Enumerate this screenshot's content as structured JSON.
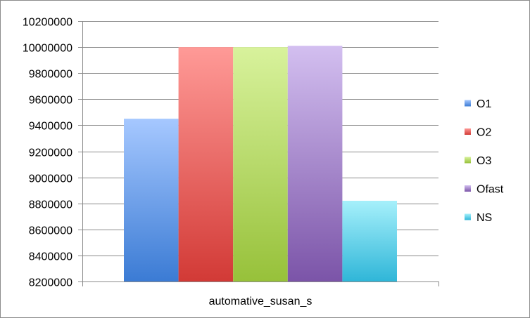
{
  "chart_data": {
    "type": "bar",
    "categories": [
      "automative_susan_s"
    ],
    "series": [
      {
        "name": "O1",
        "values": [
          9450000
        ],
        "color_top": "#a6c8ff",
        "color_bottom": "#3b7bd4"
      },
      {
        "name": "O2",
        "values": [
          10000000
        ],
        "color_top": "#ff9a97",
        "color_bottom": "#d23a36"
      },
      {
        "name": "O3",
        "values": [
          10000000
        ],
        "color_top": "#d8f29c",
        "color_bottom": "#97c13a"
      },
      {
        "name": "Ofast",
        "values": [
          10010000
        ],
        "color_top": "#d3bff0",
        "color_bottom": "#7b54a8"
      },
      {
        "name": "NS",
        "values": [
          8820000
        ],
        "color_top": "#a6f0fb",
        "color_bottom": "#2fb6d8"
      }
    ],
    "title": "",
    "xlabel": "",
    "ylabel": "",
    "ylim": [
      8200000,
      10200000
    ],
    "yticks": [
      "8200000",
      "8400000",
      "8600000",
      "8800000",
      "9000000",
      "9200000",
      "9400000",
      "9600000",
      "9800000",
      "10000000",
      "10200000"
    ],
    "grid": true,
    "legend_position": "right"
  }
}
